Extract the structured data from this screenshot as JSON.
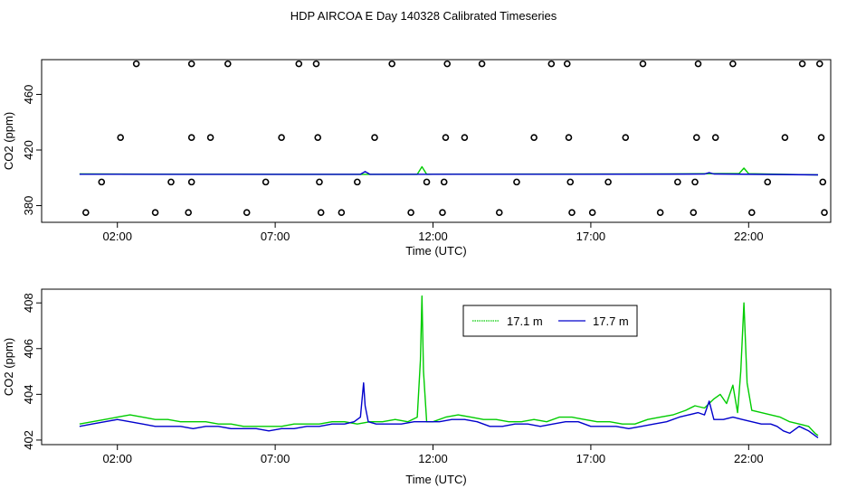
{
  "title": "HDP AIRCOA E  Day 140328  Calibrated Timeseries",
  "colors": {
    "green": "#00cc00",
    "blue": "#0000cc",
    "axis": "#000000"
  },
  "chart_data": [
    {
      "type": "scatter",
      "xlabel": "Time (UTC)",
      "ylabel": "CO2 (ppm)",
      "xlim": [
        -0.4,
        24.6
      ],
      "ylim": [
        368,
        485
      ],
      "xticks": [
        2,
        7,
        12,
        17,
        22
      ],
      "xtick_labels": [
        "02:00",
        "07:00",
        "12:00",
        "17:00",
        "22:00"
      ],
      "yticks": [
        380,
        420,
        460
      ],
      "ytick_labels": [
        "380",
        "420",
        "460"
      ],
      "calibration_points": [
        {
          "x": 1.0,
          "y": 375
        },
        {
          "x": 1.5,
          "y": 397
        },
        {
          "x": 2.1,
          "y": 429
        },
        {
          "x": 2.6,
          "y": 482
        },
        {
          "x": 3.2,
          "y": 375
        },
        {
          "x": 3.7,
          "y": 397
        },
        {
          "x": 4.25,
          "y": 375
        },
        {
          "x": 4.35,
          "y": 397
        },
        {
          "x": 4.35,
          "y": 429
        },
        {
          "x": 4.35,
          "y": 482
        },
        {
          "x": 4.95,
          "y": 429
        },
        {
          "x": 5.5,
          "y": 482
        },
        {
          "x": 6.1,
          "y": 375
        },
        {
          "x": 6.7,
          "y": 397
        },
        {
          "x": 7.2,
          "y": 429
        },
        {
          "x": 7.75,
          "y": 482
        },
        {
          "x": 8.3,
          "y": 482
        },
        {
          "x": 8.35,
          "y": 429
        },
        {
          "x": 8.4,
          "y": 397
        },
        {
          "x": 8.45,
          "y": 375
        },
        {
          "x": 9.1,
          "y": 375
        },
        {
          "x": 9.6,
          "y": 397
        },
        {
          "x": 10.15,
          "y": 429
        },
        {
          "x": 10.7,
          "y": 482
        },
        {
          "x": 11.3,
          "y": 375
        },
        {
          "x": 11.8,
          "y": 397
        },
        {
          "x": 12.3,
          "y": 375
        },
        {
          "x": 12.35,
          "y": 397
        },
        {
          "x": 12.4,
          "y": 429
        },
        {
          "x": 12.45,
          "y": 482
        },
        {
          "x": 13.0,
          "y": 429
        },
        {
          "x": 13.55,
          "y": 482
        },
        {
          "x": 14.1,
          "y": 375
        },
        {
          "x": 14.65,
          "y": 397
        },
        {
          "x": 15.2,
          "y": 429
        },
        {
          "x": 15.75,
          "y": 482
        },
        {
          "x": 16.25,
          "y": 482
        },
        {
          "x": 16.3,
          "y": 429
        },
        {
          "x": 16.35,
          "y": 397
        },
        {
          "x": 16.4,
          "y": 375
        },
        {
          "x": 17.05,
          "y": 375
        },
        {
          "x": 17.55,
          "y": 397
        },
        {
          "x": 18.1,
          "y": 429
        },
        {
          "x": 18.65,
          "y": 482
        },
        {
          "x": 19.2,
          "y": 375
        },
        {
          "x": 19.75,
          "y": 397
        },
        {
          "x": 20.25,
          "y": 375
        },
        {
          "x": 20.3,
          "y": 397
        },
        {
          "x": 20.35,
          "y": 429
        },
        {
          "x": 20.4,
          "y": 482
        },
        {
          "x": 20.95,
          "y": 429
        },
        {
          "x": 21.5,
          "y": 482
        },
        {
          "x": 22.1,
          "y": 375
        },
        {
          "x": 22.6,
          "y": 397
        },
        {
          "x": 23.15,
          "y": 429
        },
        {
          "x": 23.7,
          "y": 482
        },
        {
          "x": 24.25,
          "y": 482
        },
        {
          "x": 24.3,
          "y": 429
        },
        {
          "x": 24.35,
          "y": 397
        },
        {
          "x": 24.4,
          "y": 375
        }
      ],
      "series": [
        {
          "name": "17.1 m",
          "color": "#00cc00",
          "x": [
            0.8,
            4,
            8,
            11.5,
            11.65,
            11.8,
            12,
            16,
            19.5,
            20.6,
            21.7,
            21.85,
            22,
            24.2
          ],
          "y": [
            402.8,
            402.6,
            402.5,
            402.5,
            408,
            402.5,
            402.6,
            402.7,
            402.8,
            403,
            403.1,
            407,
            403,
            402.1
          ]
        },
        {
          "name": "17.7 m",
          "color": "#0000cc",
          "x": [
            0.8,
            4,
            9.7,
            9.85,
            10,
            16,
            20.6,
            20.75,
            20.9,
            24.2
          ],
          "y": [
            402.6,
            402.5,
            402.5,
            404.5,
            402.5,
            402.6,
            402.7,
            403.7,
            402.8,
            402.1
          ]
        }
      ]
    },
    {
      "type": "line",
      "xlabel": "Time (UTC)",
      "ylabel": "CO2 (ppm)",
      "xlim": [
        -0.4,
        24.6
      ],
      "ylim": [
        401.8,
        408.6
      ],
      "xticks": [
        2,
        7,
        12,
        17,
        22
      ],
      "xtick_labels": [
        "02:00",
        "07:00",
        "12:00",
        "17:00",
        "22:00"
      ],
      "yticks": [
        402,
        404,
        406,
        408
      ],
      "ytick_labels": [
        "402",
        "404",
        "406",
        "408"
      ],
      "legend": {
        "position": "top-right-center",
        "entries": [
          "17.1 m",
          "17.7 m"
        ]
      },
      "series": [
        {
          "name": "17.1 m",
          "color": "#00cc00",
          "x": [
            0.8,
            1.2,
            1.6,
            2.0,
            2.4,
            2.8,
            3.2,
            3.6,
            4.0,
            4.4,
            4.8,
            5.2,
            5.6,
            6.0,
            6.4,
            6.8,
            7.2,
            7.6,
            8.0,
            8.4,
            8.8,
            9.2,
            9.6,
            10.0,
            10.4,
            10.8,
            11.2,
            11.5,
            11.6,
            11.65,
            11.7,
            11.8,
            12.0,
            12.4,
            12.8,
            13.2,
            13.6,
            14.0,
            14.4,
            14.8,
            15.2,
            15.6,
            16.0,
            16.4,
            16.8,
            17.2,
            17.6,
            18.0,
            18.4,
            18.8,
            19.2,
            19.6,
            20.0,
            20.3,
            20.6,
            20.9,
            21.1,
            21.3,
            21.5,
            21.65,
            21.75,
            21.85,
            21.95,
            22.1,
            22.4,
            22.7,
            23.0,
            23.3,
            23.6,
            23.9,
            24.1,
            24.2
          ],
          "y": [
            402.7,
            402.8,
            402.9,
            403.0,
            403.1,
            403.0,
            402.9,
            402.9,
            402.8,
            402.8,
            402.8,
            402.7,
            402.7,
            402.6,
            402.6,
            402.6,
            402.6,
            402.7,
            402.7,
            402.7,
            402.8,
            402.8,
            402.7,
            402.8,
            402.8,
            402.9,
            402.8,
            403.0,
            405.5,
            408.3,
            405.0,
            402.8,
            402.8,
            403.0,
            403.1,
            403.0,
            402.9,
            402.9,
            402.8,
            402.8,
            402.9,
            402.8,
            403.0,
            403.0,
            402.9,
            402.8,
            402.8,
            402.7,
            402.7,
            402.9,
            403.0,
            403.1,
            403.3,
            403.5,
            403.4,
            403.8,
            404.0,
            403.6,
            404.4,
            403.2,
            405.0,
            408.0,
            404.5,
            403.3,
            403.2,
            403.1,
            403.0,
            402.8,
            402.7,
            402.6,
            402.3,
            402.2
          ]
        },
        {
          "name": "17.7 m",
          "color": "#0000cc",
          "x": [
            0.8,
            1.2,
            1.6,
            2.0,
            2.4,
            2.8,
            3.2,
            3.6,
            4.0,
            4.4,
            4.8,
            5.2,
            5.6,
            6.0,
            6.4,
            6.8,
            7.2,
            7.6,
            8.0,
            8.4,
            8.8,
            9.2,
            9.5,
            9.7,
            9.8,
            9.85,
            9.95,
            10.2,
            10.6,
            11.0,
            11.4,
            11.8,
            12.2,
            12.6,
            13.0,
            13.4,
            13.8,
            14.2,
            14.6,
            15.0,
            15.4,
            15.8,
            16.2,
            16.6,
            17.0,
            17.4,
            17.8,
            18.2,
            18.6,
            19.0,
            19.4,
            19.8,
            20.1,
            20.4,
            20.6,
            20.75,
            20.9,
            21.2,
            21.5,
            21.8,
            22.1,
            22.4,
            22.7,
            22.9,
            23.1,
            23.3,
            23.6,
            23.9,
            24.1,
            24.2
          ],
          "y": [
            402.6,
            402.7,
            402.8,
            402.9,
            402.8,
            402.7,
            402.6,
            402.6,
            402.6,
            402.5,
            402.6,
            402.6,
            402.5,
            402.5,
            402.5,
            402.4,
            402.5,
            402.5,
            402.6,
            402.6,
            402.7,
            402.7,
            402.8,
            403.0,
            404.5,
            403.5,
            402.8,
            402.7,
            402.7,
            402.7,
            402.8,
            402.8,
            402.8,
            402.9,
            402.9,
            402.8,
            402.6,
            402.6,
            402.7,
            402.7,
            402.6,
            402.7,
            402.8,
            402.8,
            402.6,
            402.6,
            402.6,
            402.5,
            402.6,
            402.7,
            402.8,
            403.0,
            403.1,
            403.2,
            403.1,
            403.7,
            402.9,
            402.9,
            403.0,
            402.9,
            402.8,
            402.7,
            402.7,
            402.6,
            402.4,
            402.3,
            402.6,
            402.4,
            402.2,
            402.1
          ]
        }
      ]
    }
  ]
}
